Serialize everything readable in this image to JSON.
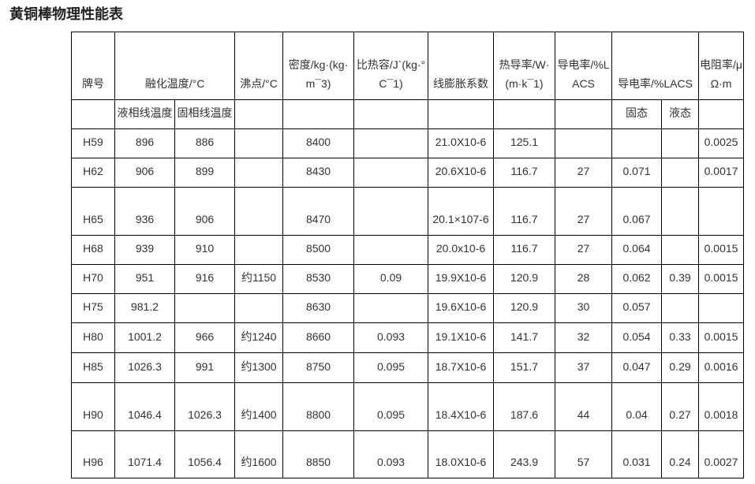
{
  "title": "黄铜棒物理性能表",
  "header": {
    "grade": "牌号",
    "melting": "融化温度/°C",
    "boiling": "沸点/°C",
    "density": "密度/kg·(kg·m¯3)",
    "specific_heat": "比热容/J`(kg·°C¯1)",
    "expansion": "线膨胀系数",
    "thermal": "热导率/W·(m·k¯1)",
    "conductivity1": "导电率/%LACS",
    "conductivity2": "导电率/%LACS",
    "resistivity": "电阻率/μΩ·m",
    "liquidus": "液相线温度",
    "solidus": "固相线温度",
    "solid": "固态",
    "liquid": "液态"
  },
  "rows": [
    [
      "H59",
      "896",
      "886",
      "",
      "8400",
      "",
      "21.0X10-6",
      "125.1",
      "",
      "",
      "",
      "0.0025"
    ],
    [
      "H62",
      "906",
      "899",
      "",
      "8430",
      "",
      "20.6X10-6",
      "116.7",
      "27",
      "0.071",
      "",
      "0.0017"
    ],
    [
      "H65",
      "936",
      "906",
      "",
      "8470",
      "",
      "20.1×107-6",
      "116.7",
      "27",
      "0.067",
      "",
      ""
    ],
    [
      "H68",
      "939",
      "910",
      "",
      "8500",
      "",
      "20.0x10-6",
      "116.7",
      "27",
      "0.064",
      "",
      "0.0015"
    ],
    [
      "H70",
      "951",
      "916",
      "约1150",
      "8530",
      "0.09",
      "19.9X10-6",
      "120.9",
      "28",
      "0.062",
      "0.39",
      "0.0015"
    ],
    [
      "H75",
      "981.2",
      "",
      "",
      "8630",
      "",
      "19.6X10-6",
      "120.9",
      "30",
      "0.057",
      "",
      ""
    ],
    [
      "H80",
      "1001.2",
      "966",
      "约1240",
      "8660",
      "0.093",
      "19.1X10-6",
      "141.7",
      "32",
      "0.054",
      "0.33",
      "0.0015"
    ],
    [
      "H85",
      "1026.3",
      "991",
      "约1300",
      "8750",
      "0.095",
      "18.7X10-6",
      "151.7",
      "37",
      "0.047",
      "0.29",
      "0.0016"
    ],
    [
      "H90",
      "1046.4",
      "1026.3",
      "约1400",
      "8800",
      "0.095",
      "18.4X10-6",
      "187.6",
      "44",
      "0.04",
      "0.27",
      "0.0018"
    ],
    [
      "H96",
      "1071.4",
      "1056.4",
      "约1600",
      "8850",
      "0.093",
      "18.0X10-6",
      "243.9",
      "57",
      "0.031",
      "0.24",
      "0.0027"
    ]
  ]
}
